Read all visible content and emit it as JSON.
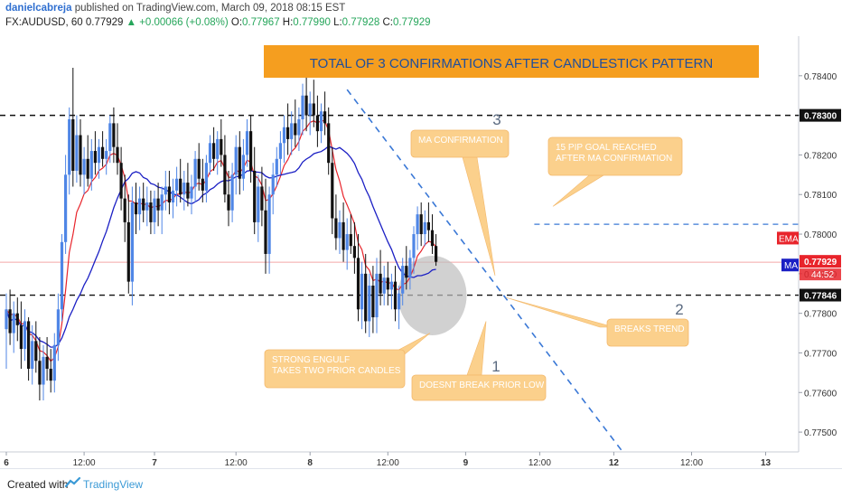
{
  "header": {
    "author": "danielcabreja",
    "published": "published on TradingView.com, March 09, 2018 08:15 EST",
    "symbol": "FX:AUDUSD, 60",
    "price": "0.77929",
    "change": "▲ +0.00066 (+0.08%)",
    "o_label": "O:",
    "o": "0.77967",
    "h_label": "H:",
    "h": "0.77990",
    "l_label": "L:",
    "l": "0.77928",
    "c_label": "C:",
    "c": "0.77929"
  },
  "footer": {
    "created": "Created with",
    "brand": "TradingView"
  },
  "colors": {
    "up": "#4f86e6",
    "down": "#111111",
    "ema": "#e8242b",
    "ma": "#1b1fc4",
    "callout_fill": "#fbd08c",
    "callout_text": "#ffffff",
    "title_fill": "#f59e1f",
    "title_text": "#1f4e9c",
    "trend": "#3a78d6"
  },
  "chart_data": {
    "type": "candlestick",
    "ylim": [
      0.7745,
      0.785
    ],
    "y_ticks": [
      "0.78400",
      "0.78300",
      "0.78200",
      "0.78100",
      "0.78000",
      "0.77900",
      "0.77800",
      "0.77700",
      "0.77600",
      "0.77500"
    ],
    "x_ticks": [
      {
        "i": 0,
        "label": "6"
      },
      {
        "i": 21,
        "label": "12:00"
      },
      {
        "i": 40,
        "label": "7"
      },
      {
        "i": 62,
        "label": "12:00"
      },
      {
        "i": 82,
        "label": "8"
      },
      {
        "i": 103,
        "label": "12:00"
      },
      {
        "i": 124,
        "label": "9"
      },
      {
        "i": 144,
        "label": "12:00"
      },
      {
        "i": 164,
        "label": "12"
      },
      {
        "i": 185,
        "label": "12:00"
      },
      {
        "i": 205,
        "label": "13"
      }
    ],
    "levels": [
      {
        "value": 0.783,
        "label": "0.78300",
        "style": "black-dashed"
      },
      {
        "value": 0.77846,
        "label": "0.77846",
        "style": "black-dashed"
      },
      {
        "value": 0.78025,
        "label": "",
        "style": "blue-dashed-short"
      }
    ],
    "price_line": {
      "value": 0.77929,
      "label": "0.77929",
      "countdown": "44:52"
    },
    "badges": {
      "ema": "EMA",
      "ma": "MA"
    },
    "candles": [
      {
        "o": 0.7776,
        "h": 0.7785,
        "l": 0.7766,
        "c": 0.7781
      },
      {
        "o": 0.7781,
        "h": 0.7786,
        "l": 0.7772,
        "c": 0.7775
      },
      {
        "o": 0.7775,
        "h": 0.7783,
        "l": 0.777,
        "c": 0.778
      },
      {
        "o": 0.778,
        "h": 0.7784,
        "l": 0.7773,
        "c": 0.7777
      },
      {
        "o": 0.7777,
        "h": 0.7783,
        "l": 0.7766,
        "c": 0.7771
      },
      {
        "o": 0.7771,
        "h": 0.7781,
        "l": 0.7768,
        "c": 0.7778
      },
      {
        "o": 0.7778,
        "h": 0.7779,
        "l": 0.7763,
        "c": 0.7766
      },
      {
        "o": 0.7766,
        "h": 0.7777,
        "l": 0.7762,
        "c": 0.7773
      },
      {
        "o": 0.7773,
        "h": 0.7778,
        "l": 0.7765,
        "c": 0.7768
      },
      {
        "o": 0.7768,
        "h": 0.7774,
        "l": 0.7758,
        "c": 0.7762
      },
      {
        "o": 0.7762,
        "h": 0.7772,
        "l": 0.7758,
        "c": 0.7769
      },
      {
        "o": 0.7769,
        "h": 0.7774,
        "l": 0.7763,
        "c": 0.7766
      },
      {
        "o": 0.7766,
        "h": 0.7771,
        "l": 0.776,
        "c": 0.7763
      },
      {
        "o": 0.7763,
        "h": 0.7775,
        "l": 0.776,
        "c": 0.7772
      },
      {
        "o": 0.7772,
        "h": 0.7785,
        "l": 0.7768,
        "c": 0.7781
      },
      {
        "o": 0.7781,
        "h": 0.78,
        "l": 0.7778,
        "c": 0.7798
      },
      {
        "o": 0.7798,
        "h": 0.782,
        "l": 0.7795,
        "c": 0.7815
      },
      {
        "o": 0.7815,
        "h": 0.7832,
        "l": 0.781,
        "c": 0.7829
      },
      {
        "o": 0.7829,
        "h": 0.7842,
        "l": 0.7812,
        "c": 0.7816
      },
      {
        "o": 0.7816,
        "h": 0.783,
        "l": 0.7813,
        "c": 0.7825
      },
      {
        "o": 0.7825,
        "h": 0.7829,
        "l": 0.7812,
        "c": 0.7815
      },
      {
        "o": 0.7815,
        "h": 0.7822,
        "l": 0.781,
        "c": 0.7819
      },
      {
        "o": 0.7819,
        "h": 0.7825,
        "l": 0.7812,
        "c": 0.7814
      },
      {
        "o": 0.7814,
        "h": 0.7824,
        "l": 0.7811,
        "c": 0.7821
      },
      {
        "o": 0.7821,
        "h": 0.7826,
        "l": 0.7815,
        "c": 0.7818
      },
      {
        "o": 0.7818,
        "h": 0.7824,
        "l": 0.7814,
        "c": 0.7822
      },
      {
        "o": 0.7822,
        "h": 0.7826,
        "l": 0.7817,
        "c": 0.7819
      },
      {
        "o": 0.7819,
        "h": 0.7824,
        "l": 0.7815,
        "c": 0.7821
      },
      {
        "o": 0.7821,
        "h": 0.783,
        "l": 0.7818,
        "c": 0.7828
      },
      {
        "o": 0.7828,
        "h": 0.7832,
        "l": 0.7818,
        "c": 0.7822
      },
      {
        "o": 0.7822,
        "h": 0.7828,
        "l": 0.7815,
        "c": 0.7818
      },
      {
        "o": 0.7818,
        "h": 0.7822,
        "l": 0.7806,
        "c": 0.7809
      },
      {
        "o": 0.7809,
        "h": 0.7815,
        "l": 0.7798,
        "c": 0.7803
      },
      {
        "o": 0.7803,
        "h": 0.781,
        "l": 0.7785,
        "c": 0.7788
      },
      {
        "o": 0.7788,
        "h": 0.7812,
        "l": 0.7782,
        "c": 0.7808
      },
      {
        "o": 0.7808,
        "h": 0.7813,
        "l": 0.78,
        "c": 0.7805
      },
      {
        "o": 0.7805,
        "h": 0.7812,
        "l": 0.7801,
        "c": 0.7809
      },
      {
        "o": 0.7809,
        "h": 0.7813,
        "l": 0.7803,
        "c": 0.7806
      },
      {
        "o": 0.7806,
        "h": 0.7812,
        "l": 0.7802,
        "c": 0.7808
      },
      {
        "o": 0.7808,
        "h": 0.7811,
        "l": 0.78,
        "c": 0.7803
      },
      {
        "o": 0.7803,
        "h": 0.7811,
        "l": 0.78,
        "c": 0.7809
      },
      {
        "o": 0.7809,
        "h": 0.7813,
        "l": 0.7802,
        "c": 0.7806
      },
      {
        "o": 0.7806,
        "h": 0.7812,
        "l": 0.78,
        "c": 0.781
      },
      {
        "o": 0.781,
        "h": 0.7816,
        "l": 0.7806,
        "c": 0.7812
      },
      {
        "o": 0.7812,
        "h": 0.7816,
        "l": 0.7805,
        "c": 0.7808
      },
      {
        "o": 0.7808,
        "h": 0.7814,
        "l": 0.7804,
        "c": 0.7811
      },
      {
        "o": 0.7811,
        "h": 0.7817,
        "l": 0.7807,
        "c": 0.7814
      },
      {
        "o": 0.7814,
        "h": 0.7819,
        "l": 0.7808,
        "c": 0.781
      },
      {
        "o": 0.781,
        "h": 0.7816,
        "l": 0.7806,
        "c": 0.7813
      },
      {
        "o": 0.7813,
        "h": 0.7818,
        "l": 0.7807,
        "c": 0.7809
      },
      {
        "o": 0.7809,
        "h": 0.7815,
        "l": 0.7805,
        "c": 0.7812
      },
      {
        "o": 0.7812,
        "h": 0.7821,
        "l": 0.7808,
        "c": 0.7819
      },
      {
        "o": 0.7819,
        "h": 0.7823,
        "l": 0.7811,
        "c": 0.7814
      },
      {
        "o": 0.7814,
        "h": 0.7819,
        "l": 0.7808,
        "c": 0.7811
      },
      {
        "o": 0.7811,
        "h": 0.782,
        "l": 0.7808,
        "c": 0.7818
      },
      {
        "o": 0.7818,
        "h": 0.7825,
        "l": 0.7815,
        "c": 0.7823
      },
      {
        "o": 0.7823,
        "h": 0.7827,
        "l": 0.7816,
        "c": 0.7819
      },
      {
        "o": 0.7819,
        "h": 0.7826,
        "l": 0.7815,
        "c": 0.7824
      },
      {
        "o": 0.7824,
        "h": 0.7829,
        "l": 0.7817,
        "c": 0.782
      },
      {
        "o": 0.782,
        "h": 0.7825,
        "l": 0.7808,
        "c": 0.781
      },
      {
        "o": 0.781,
        "h": 0.7816,
        "l": 0.7802,
        "c": 0.7806
      },
      {
        "o": 0.7806,
        "h": 0.7818,
        "l": 0.7803,
        "c": 0.7815
      },
      {
        "o": 0.7815,
        "h": 0.7825,
        "l": 0.781,
        "c": 0.7822
      },
      {
        "o": 0.7822,
        "h": 0.7826,
        "l": 0.781,
        "c": 0.7814
      },
      {
        "o": 0.7814,
        "h": 0.7824,
        "l": 0.7811,
        "c": 0.782
      },
      {
        "o": 0.782,
        "h": 0.7829,
        "l": 0.7817,
        "c": 0.7826
      },
      {
        "o": 0.7826,
        "h": 0.783,
        "l": 0.7813,
        "c": 0.7816
      },
      {
        "o": 0.7816,
        "h": 0.7822,
        "l": 0.78,
        "c": 0.7803
      },
      {
        "o": 0.7803,
        "h": 0.7815,
        "l": 0.7798,
        "c": 0.7812
      },
      {
        "o": 0.7812,
        "h": 0.7817,
        "l": 0.7802,
        "c": 0.7806
      },
      {
        "o": 0.7806,
        "h": 0.7814,
        "l": 0.779,
        "c": 0.7795
      },
      {
        "o": 0.7795,
        "h": 0.7812,
        "l": 0.779,
        "c": 0.781
      },
      {
        "o": 0.781,
        "h": 0.7818,
        "l": 0.7805,
        "c": 0.7815
      },
      {
        "o": 0.7815,
        "h": 0.7822,
        "l": 0.7812,
        "c": 0.7819
      },
      {
        "o": 0.7819,
        "h": 0.7826,
        "l": 0.7815,
        "c": 0.7823
      },
      {
        "o": 0.7823,
        "h": 0.783,
        "l": 0.7818,
        "c": 0.7827
      },
      {
        "o": 0.7827,
        "h": 0.7833,
        "l": 0.782,
        "c": 0.7824
      },
      {
        "o": 0.7824,
        "h": 0.7831,
        "l": 0.782,
        "c": 0.7828
      },
      {
        "o": 0.7828,
        "h": 0.7834,
        "l": 0.7822,
        "c": 0.7825
      },
      {
        "o": 0.7825,
        "h": 0.7832,
        "l": 0.7821,
        "c": 0.7829
      },
      {
        "o": 0.7829,
        "h": 0.7838,
        "l": 0.7825,
        "c": 0.7835
      },
      {
        "o": 0.7835,
        "h": 0.784,
        "l": 0.7826,
        "c": 0.783
      },
      {
        "o": 0.783,
        "h": 0.7836,
        "l": 0.7825,
        "c": 0.7833
      },
      {
        "o": 0.7833,
        "h": 0.7839,
        "l": 0.7827,
        "c": 0.783
      },
      {
        "o": 0.783,
        "h": 0.7835,
        "l": 0.7822,
        "c": 0.7826
      },
      {
        "o": 0.7826,
        "h": 0.7833,
        "l": 0.7823,
        "c": 0.7831
      },
      {
        "o": 0.7831,
        "h": 0.7836,
        "l": 0.7825,
        "c": 0.7828
      },
      {
        "o": 0.7828,
        "h": 0.7832,
        "l": 0.7815,
        "c": 0.7818
      },
      {
        "o": 0.7818,
        "h": 0.7822,
        "l": 0.78,
        "c": 0.7804
      },
      {
        "o": 0.7804,
        "h": 0.781,
        "l": 0.7796,
        "c": 0.7799
      },
      {
        "o": 0.7799,
        "h": 0.7806,
        "l": 0.7795,
        "c": 0.7803
      },
      {
        "o": 0.7803,
        "h": 0.7808,
        "l": 0.7793,
        "c": 0.7796
      },
      {
        "o": 0.7796,
        "h": 0.7804,
        "l": 0.7791,
        "c": 0.78
      },
      {
        "o": 0.78,
        "h": 0.7805,
        "l": 0.7795,
        "c": 0.7797
      },
      {
        "o": 0.7797,
        "h": 0.7803,
        "l": 0.779,
        "c": 0.7794
      },
      {
        "o": 0.7794,
        "h": 0.78,
        "l": 0.7778,
        "c": 0.7781
      },
      {
        "o": 0.7781,
        "h": 0.7793,
        "l": 0.7776,
        "c": 0.779
      },
      {
        "o": 0.779,
        "h": 0.7795,
        "l": 0.7775,
        "c": 0.7778
      },
      {
        "o": 0.7778,
        "h": 0.779,
        "l": 0.7774,
        "c": 0.7787
      },
      {
        "o": 0.7787,
        "h": 0.7792,
        "l": 0.7775,
        "c": 0.7779
      },
      {
        "o": 0.7779,
        "h": 0.7794,
        "l": 0.7775,
        "c": 0.779
      },
      {
        "o": 0.779,
        "h": 0.7796,
        "l": 0.7782,
        "c": 0.7785
      },
      {
        "o": 0.7785,
        "h": 0.7792,
        "l": 0.7782,
        "c": 0.7789
      },
      {
        "o": 0.7789,
        "h": 0.7793,
        "l": 0.7782,
        "c": 0.7786
      },
      {
        "o": 0.7786,
        "h": 0.779,
        "l": 0.7781,
        "c": 0.7788
      },
      {
        "o": 0.7788,
        "h": 0.7792,
        "l": 0.7778,
        "c": 0.7781
      },
      {
        "o": 0.7781,
        "h": 0.7787,
        "l": 0.7776,
        "c": 0.7785
      },
      {
        "o": 0.7785,
        "h": 0.7794,
        "l": 0.7782,
        "c": 0.7792
      },
      {
        "o": 0.7792,
        "h": 0.7797,
        "l": 0.7786,
        "c": 0.7789
      },
      {
        "o": 0.7789,
        "h": 0.7796,
        "l": 0.7786,
        "c": 0.7794
      },
      {
        "o": 0.7794,
        "h": 0.7802,
        "l": 0.779,
        "c": 0.78
      },
      {
        "o": 0.78,
        "h": 0.7807,
        "l": 0.7796,
        "c": 0.7805
      },
      {
        "o": 0.7805,
        "h": 0.7808,
        "l": 0.7797,
        "c": 0.78
      },
      {
        "o": 0.78,
        "h": 0.7806,
        "l": 0.7797,
        "c": 0.7803
      },
      {
        "o": 0.7803,
        "h": 0.7808,
        "l": 0.7798,
        "c": 0.7801
      },
      {
        "o": 0.7801,
        "h": 0.7805,
        "l": 0.7795,
        "c": 0.7797
      },
      {
        "o": 0.7797,
        "h": 0.78,
        "l": 0.7792,
        "c": 0.7793
      }
    ],
    "annotations": {
      "title": "TOTAL OF 3 CONFIRMATIONS AFTER CANDLESTICK PATTERN",
      "callouts": [
        {
          "id": "ma-confirmation",
          "lines": [
            "MA CONFIRMATION"
          ]
        },
        {
          "id": "pip-goal",
          "lines": [
            "15 PIP GOAL REACHED",
            "AFTER MA CONFIRMATION"
          ]
        },
        {
          "id": "breaks-trend",
          "lines": [
            "BREAKS TREND"
          ]
        },
        {
          "id": "strong-engulf",
          "lines": [
            "STRONG ENGULF",
            "TAKES TWO PRIOR CANDLES"
          ]
        },
        {
          "id": "doesnt-break",
          "lines": [
            "DOESNT BREAK PRIOR LOW"
          ]
        }
      ],
      "numbers": [
        "3",
        "2",
        "1"
      ]
    }
  }
}
